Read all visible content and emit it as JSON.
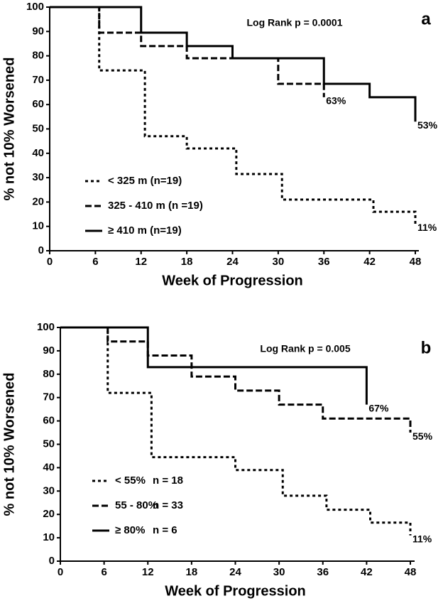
{
  "chart_data": [
    {
      "type": "step",
      "panel_label": "a",
      "annotation": "Log Rank p = 0.0001",
      "x_label": "Week of Progression",
      "y_label": "% not 10% Worsened",
      "xlim": [
        0,
        48
      ],
      "ylim": [
        0,
        100
      ],
      "xticks": [
        0,
        6,
        12,
        18,
        24,
        30,
        36,
        42,
        48
      ],
      "yticks": [
        0,
        10,
        20,
        30,
        40,
        50,
        60,
        70,
        80,
        90,
        100
      ],
      "series": [
        {
          "name": "< 325 m  (n=19)",
          "color": "#000000",
          "style": "dotted",
          "x": [
            0,
            6.5,
            12.5,
            18,
            24.5,
            30.5,
            42.5,
            48
          ],
          "values": [
            100,
            74,
            47,
            42,
            31.5,
            21,
            16,
            11
          ],
          "end_label": "11%"
        },
        {
          "name": "325 - 410 m (n =19)",
          "color": "#000000",
          "style": "dashed",
          "x": [
            0,
            6.5,
            12,
            18,
            30,
            36
          ],
          "values": [
            100,
            89.5,
            84,
            79,
            68.5,
            63
          ],
          "end_label": "63%"
        },
        {
          "name": "≥ 410 m (n=19)",
          "color": "#000000",
          "style": "solid",
          "x": [
            0,
            12,
            18,
            24,
            36,
            42,
            48
          ],
          "values": [
            100,
            89.5,
            84,
            79,
            68.5,
            63,
            53
          ],
          "end_label": "53%"
        }
      ]
    },
    {
      "type": "step",
      "panel_label": "b",
      "annotation": "Log Rank p = 0.005",
      "x_label": "Week of Progression",
      "y_label": "% not 10% Worsened",
      "xlim": [
        0,
        48
      ],
      "ylim": [
        0,
        100
      ],
      "xticks": [
        0,
        6,
        12,
        18,
        24,
        30,
        36,
        42,
        48
      ],
      "yticks": [
        0,
        10,
        20,
        30,
        40,
        50,
        60,
        70,
        80,
        90,
        100
      ],
      "series": [
        {
          "name": "< 55%",
          "n": "n = 18",
          "color": "#000000",
          "style": "dotted",
          "x": [
            0,
            6.5,
            12.5,
            24,
            30.5,
            36.5,
            42.5,
            48
          ],
          "values": [
            100,
            72,
            44.5,
            39,
            28,
            22,
            16.5,
            11
          ],
          "end_label": "11%"
        },
        {
          "name": "55 - 80%",
          "n": "n = 33",
          "color": "#000000",
          "style": "dashed",
          "x": [
            0,
            6.5,
            12,
            18,
            24,
            30,
            36,
            48
          ],
          "values": [
            100,
            94,
            88,
            79,
            73,
            67,
            61,
            55
          ],
          "end_label": "55%"
        },
        {
          "name": "≥ 80%",
          "n": "n = 6",
          "color": "#000000",
          "style": "solid",
          "x": [
            0,
            12,
            42
          ],
          "values": [
            100,
            83,
            67
          ],
          "end_label": "67%"
        }
      ]
    }
  ]
}
